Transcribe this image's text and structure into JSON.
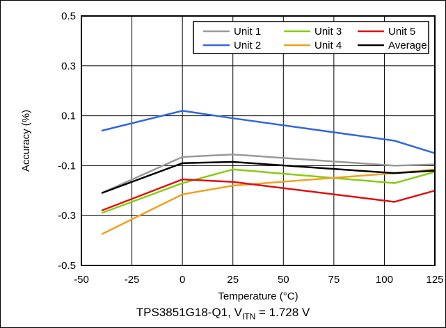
{
  "chart_data": {
    "type": "line",
    "xlabel": "Temperature (°C)",
    "ylabel": "Accuracy (%)",
    "xlim": [
      -50,
      125
    ],
    "ylim": [
      -0.5,
      0.5
    ],
    "xticks": [
      -50,
      -25,
      0,
      25,
      50,
      75,
      100,
      125
    ],
    "yticks": [
      -0.5,
      -0.3,
      -0.1,
      0.1,
      0.3,
      0.5
    ],
    "ytick_labels": [
      "-0.5",
      "-0.3",
      "-0.1",
      "0.1",
      "0.3",
      "0.5"
    ],
    "grid": true,
    "legend_position": "top-right",
    "x": [
      -40,
      0,
      25,
      105,
      125
    ],
    "series": [
      {
        "name": "Unit 1",
        "color": "#999999",
        "values": [
          -0.21,
          -0.065,
          -0.055,
          -0.1,
          -0.095
        ]
      },
      {
        "name": "Unit 2",
        "color": "#3366dd",
        "values": [
          0.04,
          0.12,
          0.09,
          0.0,
          -0.05
        ]
      },
      {
        "name": "Unit 3",
        "color": "#88cc11",
        "values": [
          -0.29,
          -0.17,
          -0.115,
          -0.17,
          -0.125
        ]
      },
      {
        "name": "Unit 4",
        "color": "#f0a020",
        "values": [
          -0.375,
          -0.215,
          -0.18,
          -0.13,
          -0.115
        ]
      },
      {
        "name": "Unit 5",
        "color": "#e01010",
        "values": [
          -0.28,
          -0.155,
          -0.165,
          -0.245,
          -0.2
        ]
      },
      {
        "name": "Average",
        "color": "#000000",
        "values": [
          -0.21,
          -0.09,
          -0.085,
          -0.13,
          -0.12
        ]
      }
    ]
  },
  "caption": {
    "prefix": "TPS3851G18-Q1, V",
    "subscript": "ITN",
    "suffix": " = 1.728 V"
  }
}
